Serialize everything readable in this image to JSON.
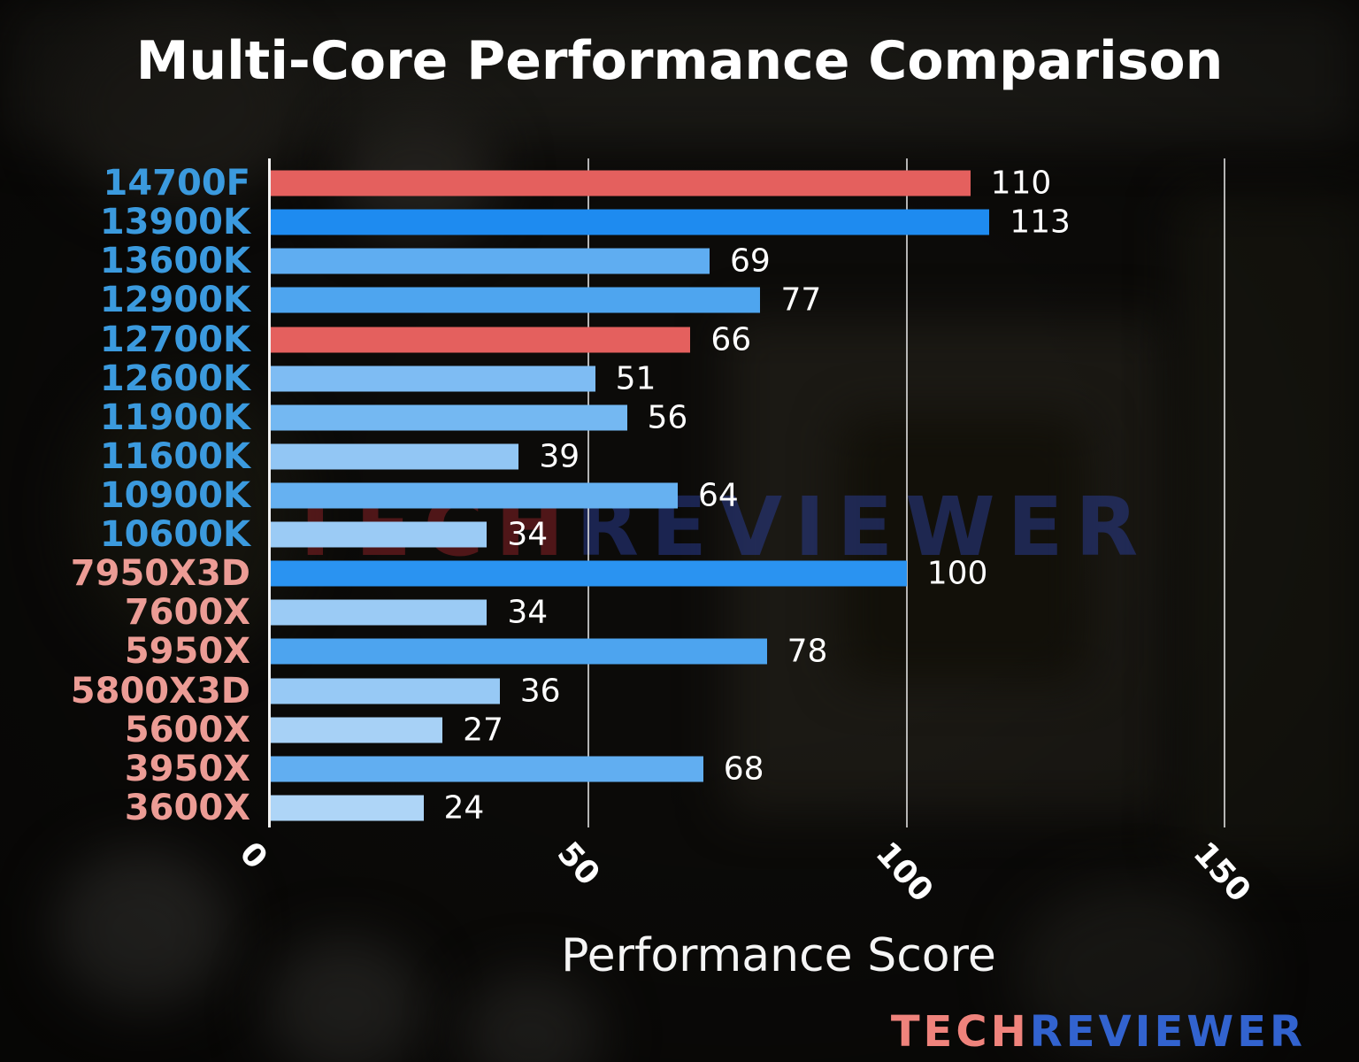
{
  "watermark": {
    "part1": "TECH",
    "part2": "REVIEWER"
  },
  "logo": {
    "part1": "TECH",
    "part2": "REVIEWER"
  },
  "chart_data": {
    "type": "bar",
    "orientation": "horizontal",
    "title": "Multi-Core Performance Comparison",
    "xlabel": "Performance Score",
    "ylabel": "",
    "xlim": [
      0,
      160
    ],
    "xticks": [
      0,
      50,
      100,
      150
    ],
    "grid": true,
    "legend": false,
    "highlight_color": "#e4605e",
    "categories": [
      "14700F",
      "13900K",
      "13600K",
      "12900K",
      "12700K",
      "12600K",
      "11900K",
      "11600K",
      "10900K",
      "10600K",
      "7950X3D",
      "7600X",
      "5950X",
      "5800X3D",
      "5600X",
      "3950X",
      "3600X"
    ],
    "values": [
      110,
      113,
      69,
      77,
      66,
      51,
      56,
      39,
      64,
      34,
      100,
      34,
      78,
      36,
      27,
      68,
      24
    ],
    "items": [
      {
        "category": "14700F",
        "value": 110,
        "bar_color": "#e4605e",
        "label_color": "#3b9ade"
      },
      {
        "category": "13900K",
        "value": 113,
        "bar_color": "#1e8bf0",
        "label_color": "#3b9ade"
      },
      {
        "category": "13600K",
        "value": 69,
        "bar_color": "#5fadf1",
        "label_color": "#3b9ade"
      },
      {
        "category": "12900K",
        "value": 77,
        "bar_color": "#4ea5ef",
        "label_color": "#3b9ade"
      },
      {
        "category": "12700K",
        "value": 66,
        "bar_color": "#e4605e",
        "label_color": "#3b9ade"
      },
      {
        "category": "12600K",
        "value": 51,
        "bar_color": "#7ebcf3",
        "label_color": "#3b9ade"
      },
      {
        "category": "11900K",
        "value": 56,
        "bar_color": "#74b8f2",
        "label_color": "#3b9ade"
      },
      {
        "category": "11600K",
        "value": 39,
        "bar_color": "#92c6f4",
        "label_color": "#3b9ade"
      },
      {
        "category": "10900K",
        "value": 64,
        "bar_color": "#66b1f1",
        "label_color": "#3b9ade"
      },
      {
        "category": "10600K",
        "value": 34,
        "bar_color": "#9bcbf5",
        "label_color": "#3b9ade"
      },
      {
        "category": "7950X3D",
        "value": 100,
        "bar_color": "#2a93f1",
        "label_color": "#ec9c95"
      },
      {
        "category": "7600X",
        "value": 34,
        "bar_color": "#9bcbf5",
        "label_color": "#ec9c95"
      },
      {
        "category": "5950X",
        "value": 78,
        "bar_color": "#4da4ef",
        "label_color": "#ec9c95"
      },
      {
        "category": "5800X3D",
        "value": 36,
        "bar_color": "#97c9f5",
        "label_color": "#ec9c95"
      },
      {
        "category": "5600X",
        "value": 27,
        "bar_color": "#a7d1f6",
        "label_color": "#ec9c95"
      },
      {
        "category": "3950X",
        "value": 68,
        "bar_color": "#61aef1",
        "label_color": "#ec9c95"
      },
      {
        "category": "3600X",
        "value": 24,
        "bar_color": "#aed5f7",
        "label_color": "#ec9c95"
      }
    ]
  }
}
